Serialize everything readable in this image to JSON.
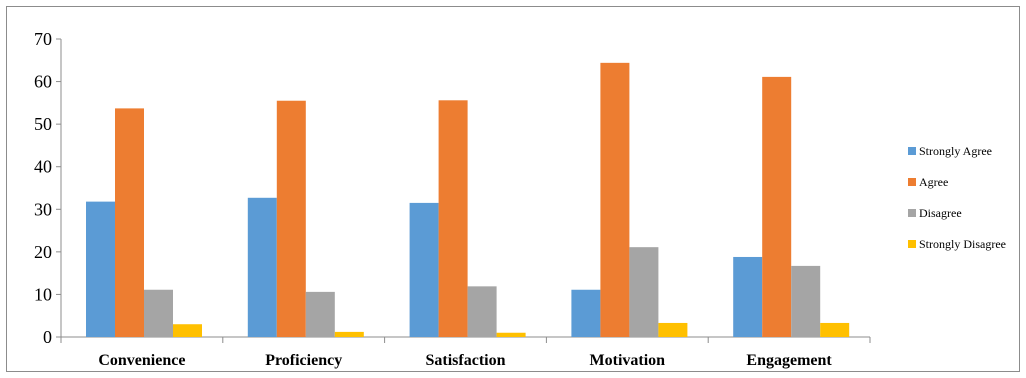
{
  "chart_data": {
    "type": "bar",
    "title": "",
    "xlabel": "",
    "ylabel": "",
    "categories": [
      "Convenience",
      "Proficiency",
      "Satisfaction",
      "Motivation",
      "Engagement"
    ],
    "series": [
      {
        "name": "Strongly Agree",
        "values": [
          31.8,
          32.7,
          31.5,
          11.1,
          18.8
        ],
        "color": "#5b9bd5"
      },
      {
        "name": "Agree",
        "values": [
          53.7,
          55.5,
          55.6,
          64.4,
          61.1
        ],
        "color": "#ed7d31"
      },
      {
        "name": "Disagree",
        "values": [
          11.1,
          10.6,
          11.9,
          21.1,
          16.7
        ],
        "color": "#a5a5a5"
      },
      {
        "name": "Strongly Disagree",
        "values": [
          3.0,
          1.2,
          1.0,
          3.3,
          3.3
        ],
        "color": "#ffc000"
      }
    ],
    "ylim": [
      0,
      70
    ],
    "yticks": [
      0,
      10,
      20,
      30,
      40,
      50,
      60,
      70
    ],
    "grid": false,
    "legend_position": "right"
  }
}
